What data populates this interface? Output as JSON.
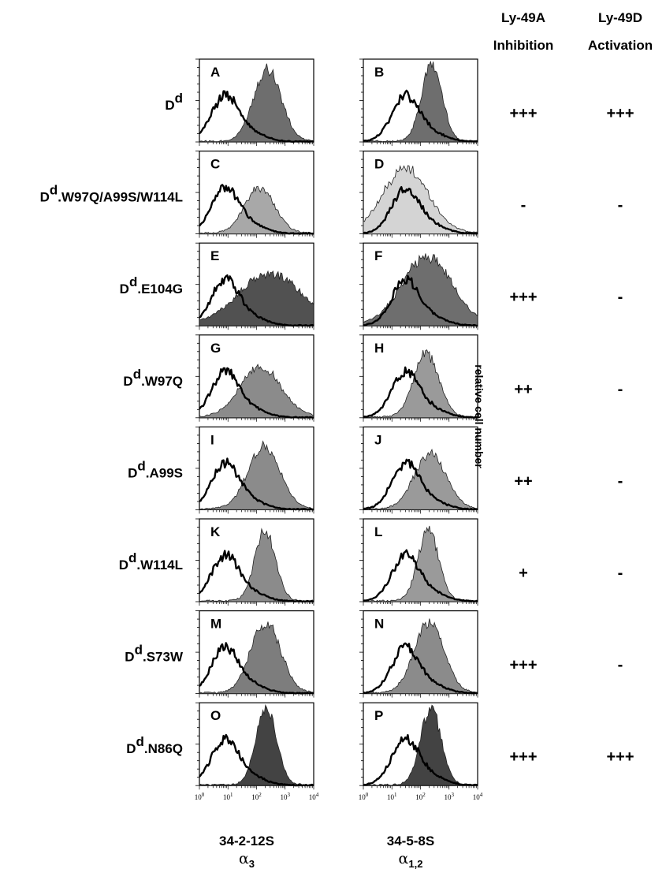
{
  "figure": {
    "column_headers": [
      {
        "line1": "Ly-49A",
        "line2": "Inhibition"
      },
      {
        "line1": "Ly-49D",
        "line2": "Activation"
      }
    ],
    "y_axis_label": "relative cell number",
    "x_axis": {
      "tick_base": "10",
      "tick_exponents": [
        "0",
        "1",
        "2",
        "3",
        "4"
      ],
      "columns": [
        {
          "antibody": "34-2-12S",
          "domain_greek": "α",
          "domain_sub": "3"
        },
        {
          "antibody": "34-5-8S",
          "domain_greek": "α",
          "domain_sub": "1,2"
        }
      ]
    },
    "rows": [
      {
        "prefix": "D",
        "sup": "d",
        "suffix": "",
        "panels": [
          "A",
          "B"
        ],
        "ly49a": "+++",
        "ly49d": "+++"
      },
      {
        "prefix": "D",
        "sup": "d",
        "suffix": ".W97Q/A99S/W114L",
        "panels": [
          "C",
          "D"
        ],
        "ly49a": "-",
        "ly49d": "-"
      },
      {
        "prefix": "D",
        "sup": "d",
        "suffix": ".E104G",
        "panels": [
          "E",
          "F"
        ],
        "ly49a": "+++",
        "ly49d": "-"
      },
      {
        "prefix": "D",
        "sup": "d",
        "suffix": ".W97Q",
        "panels": [
          "G",
          "H"
        ],
        "ly49a": "++",
        "ly49d": "-"
      },
      {
        "prefix": "D",
        "sup": "d",
        "suffix": ".A99S",
        "panels": [
          "I",
          "J"
        ],
        "ly49a": "++",
        "ly49d": "-"
      },
      {
        "prefix": "D",
        "sup": "d",
        "suffix": ".W114L",
        "panels": [
          "K",
          "L"
        ],
        "ly49a": "+",
        "ly49d": "-"
      },
      {
        "prefix": "D",
        "sup": "d",
        "suffix": ".S73W",
        "panels": [
          "M",
          "N"
        ],
        "ly49a": "+++",
        "ly49d": "-"
      },
      {
        "prefix": "D",
        "sup": "d",
        "suffix": ".N86Q",
        "panels": [
          "O",
          "P"
        ],
        "ly49a": "+++",
        "ly49d": "+++"
      }
    ]
  },
  "chart_data": {
    "type": "area",
    "scale": "log",
    "xlim": [
      1,
      10000
    ],
    "panels": [
      {
        "letter": "A",
        "control_peak": 8,
        "stain_peak": 240,
        "stain_width": 0.12,
        "stain_height": 0.88,
        "shade": "#555555"
      },
      {
        "letter": "B",
        "control_peak": 30,
        "stain_peak": 250,
        "stain_width": 0.09,
        "stain_height": 0.92,
        "shade": "#555555"
      },
      {
        "letter": "C",
        "control_peak": 8,
        "stain_peak": 130,
        "stain_width": 0.13,
        "stain_height": 0.55,
        "shade": "#999999"
      },
      {
        "letter": "D",
        "control_peak": 30,
        "stain_peak": 30,
        "stain_width": 0.2,
        "stain_height": 0.78,
        "shade": "#cccccc"
      },
      {
        "letter": "E",
        "control_peak": 8,
        "stain_peak": 300,
        "stain_width": 0.28,
        "stain_height": 0.62,
        "shade": "#333333"
      },
      {
        "letter": "F",
        "control_peak": 30,
        "stain_peak": 170,
        "stain_width": 0.22,
        "stain_height": 0.82,
        "shade": "#555555"
      },
      {
        "letter": "G",
        "control_peak": 8,
        "stain_peak": 140,
        "stain_width": 0.18,
        "stain_height": 0.6,
        "shade": "#777777"
      },
      {
        "letter": "H",
        "control_peak": 30,
        "stain_peak": 160,
        "stain_width": 0.11,
        "stain_height": 0.76,
        "shade": "#888888"
      },
      {
        "letter": "I",
        "control_peak": 8,
        "stain_peak": 180,
        "stain_width": 0.14,
        "stain_height": 0.75,
        "shade": "#777777"
      },
      {
        "letter": "J",
        "control_peak": 30,
        "stain_peak": 220,
        "stain_width": 0.14,
        "stain_height": 0.66,
        "shade": "#888888"
      },
      {
        "letter": "K",
        "control_peak": 8,
        "stain_peak": 200,
        "stain_width": 0.09,
        "stain_height": 0.85,
        "shade": "#777777"
      },
      {
        "letter": "L",
        "control_peak": 30,
        "stain_peak": 190,
        "stain_width": 0.09,
        "stain_height": 0.85,
        "shade": "#888888"
      },
      {
        "letter": "M",
        "control_peak": 8,
        "stain_peak": 210,
        "stain_width": 0.13,
        "stain_height": 0.85,
        "shade": "#666666"
      },
      {
        "letter": "N",
        "control_peak": 30,
        "stain_peak": 200,
        "stain_width": 0.13,
        "stain_height": 0.85,
        "shade": "#777777"
      },
      {
        "letter": "O",
        "control_peak": 8,
        "stain_peak": 220,
        "stain_width": 0.09,
        "stain_height": 0.92,
        "shade": "#222222"
      },
      {
        "letter": "P",
        "control_peak": 30,
        "stain_peak": 230,
        "stain_width": 0.09,
        "stain_height": 0.92,
        "shade": "#222222"
      }
    ]
  }
}
